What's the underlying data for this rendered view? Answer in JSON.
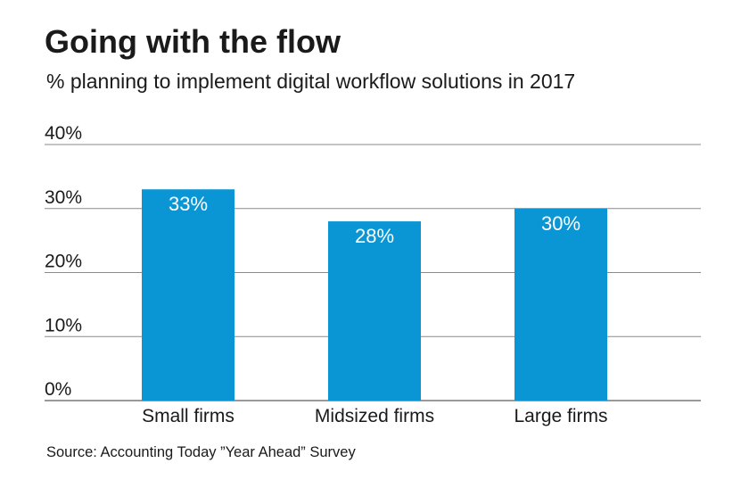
{
  "chart_data": {
    "type": "bar",
    "title": "Going with the flow",
    "subtitle": "% planning to implement digital workflow solutions in 2017",
    "categories": [
      "Small firms",
      "Midsized firms",
      "Large firms"
    ],
    "values": [
      33,
      28,
      30
    ],
    "data_labels": [
      "33%",
      "28%",
      "30%"
    ],
    "y_ticks": [
      0,
      10,
      20,
      30,
      40
    ],
    "y_tick_labels": [
      "0%",
      "10%",
      "20%",
      "30%",
      "40%"
    ],
    "ylim": [
      0,
      40
    ],
    "xlabel": "",
    "ylabel": "",
    "grid": true,
    "legend": "none",
    "bar_color": "#0a96d4",
    "source": "Source: Accounting Today ”Year Ahead” Survey"
  }
}
